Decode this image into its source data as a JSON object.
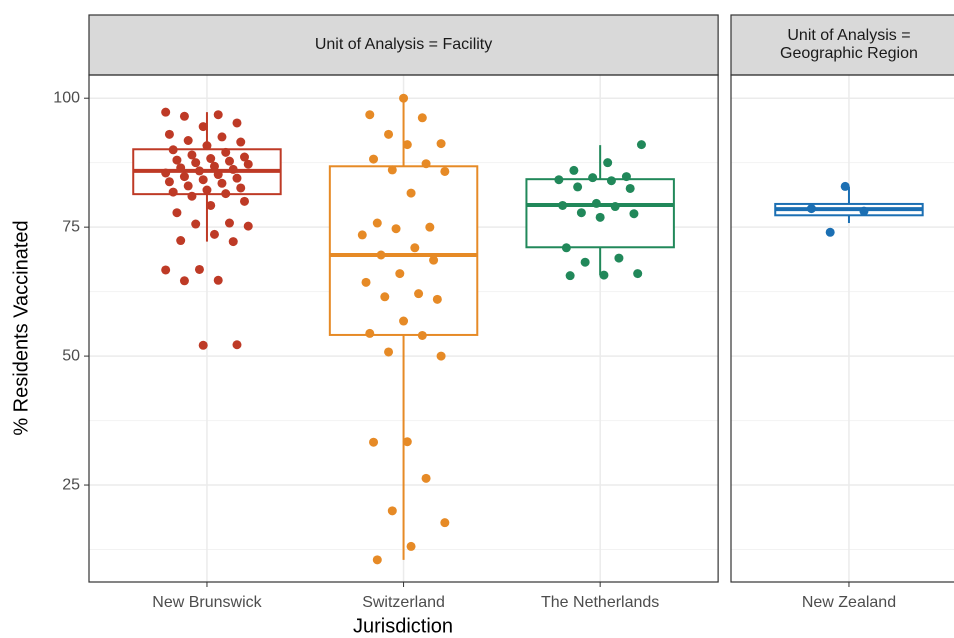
{
  "chart_data": {
    "type": "boxplot",
    "y_label": "% Residents Vaccinated",
    "x_label": "Jurisdiction",
    "ylim": [
      6.2,
      104.5
    ],
    "yticks": [
      25,
      50,
      75,
      100
    ],
    "minor_yticks": [
      12.5,
      37.5,
      62.5,
      87.5
    ],
    "grid": true,
    "facets": [
      {
        "strip": [
          "Unit of Analysis = Facility"
        ],
        "series": [
          0,
          1,
          2
        ]
      },
      {
        "strip": [
          "Unit of Analysis =",
          "Geographic Region"
        ],
        "series": [
          3
        ]
      }
    ],
    "series": [
      {
        "name": "New Brunswick",
        "color": "#be3a26",
        "box": {
          "whisker_low": 72.2,
          "q1": 81.4,
          "median": 85.9,
          "q3": 90.1,
          "whisker_high": 97.3
        },
        "points": [
          97.3,
          96.8,
          96.5,
          95.2,
          94.5,
          93.0,
          92.5,
          91.8,
          91.5,
          90.8,
          90.0,
          89.5,
          89.0,
          88.6,
          88.3,
          88.0,
          87.8,
          87.5,
          87.2,
          86.8,
          86.5,
          86.2,
          85.9,
          85.5,
          85.2,
          84.8,
          84.5,
          84.2,
          83.8,
          83.5,
          83.0,
          82.6,
          82.2,
          81.8,
          81.5,
          81.0,
          80.0,
          79.2,
          77.8,
          75.8,
          75.6,
          75.2,
          73.6,
          72.4,
          72.2,
          66.8,
          66.7,
          64.7,
          64.6,
          52.2,
          52.1
        ]
      },
      {
        "name": "Switzerland",
        "color": "#e68a26",
        "box": {
          "whisker_low": 10.5,
          "q1": 54.1,
          "median": 69.6,
          "q3": 86.8,
          "whisker_high": 100.0
        },
        "points": [
          100.0,
          96.8,
          96.2,
          93.0,
          91.2,
          91.0,
          88.2,
          87.3,
          86.1,
          85.8,
          81.6,
          75.8,
          75.0,
          74.7,
          73.5,
          71.0,
          69.6,
          68.6,
          66.0,
          64.3,
          62.1,
          61.5,
          61.0,
          56.8,
          54.4,
          54.0,
          50.8,
          50.0,
          33.4,
          33.3,
          26.3,
          20.0,
          17.7,
          13.1,
          10.5
        ]
      },
      {
        "name": "The Netherlands",
        "color": "#21885a",
        "box": {
          "whisker_low": 65.7,
          "q1": 71.1,
          "median": 79.3,
          "q3": 84.3,
          "whisker_high": 90.9
        },
        "points": [
          91.0,
          87.5,
          86.0,
          84.8,
          84.6,
          84.2,
          84.0,
          82.8,
          82.5,
          79.6,
          79.2,
          79.0,
          77.8,
          77.6,
          76.9,
          71.0,
          69.0,
          68.2,
          66.0,
          65.7,
          65.6
        ]
      },
      {
        "name": "New Zealand",
        "color": "#1b6fb3",
        "box": {
          "whisker_low": 75.8,
          "q1": 77.3,
          "median": 78.5,
          "q3": 79.5,
          "whisker_high": 82.8
        },
        "points": [
          82.9,
          78.6,
          78.1,
          74.0
        ]
      }
    ]
  }
}
